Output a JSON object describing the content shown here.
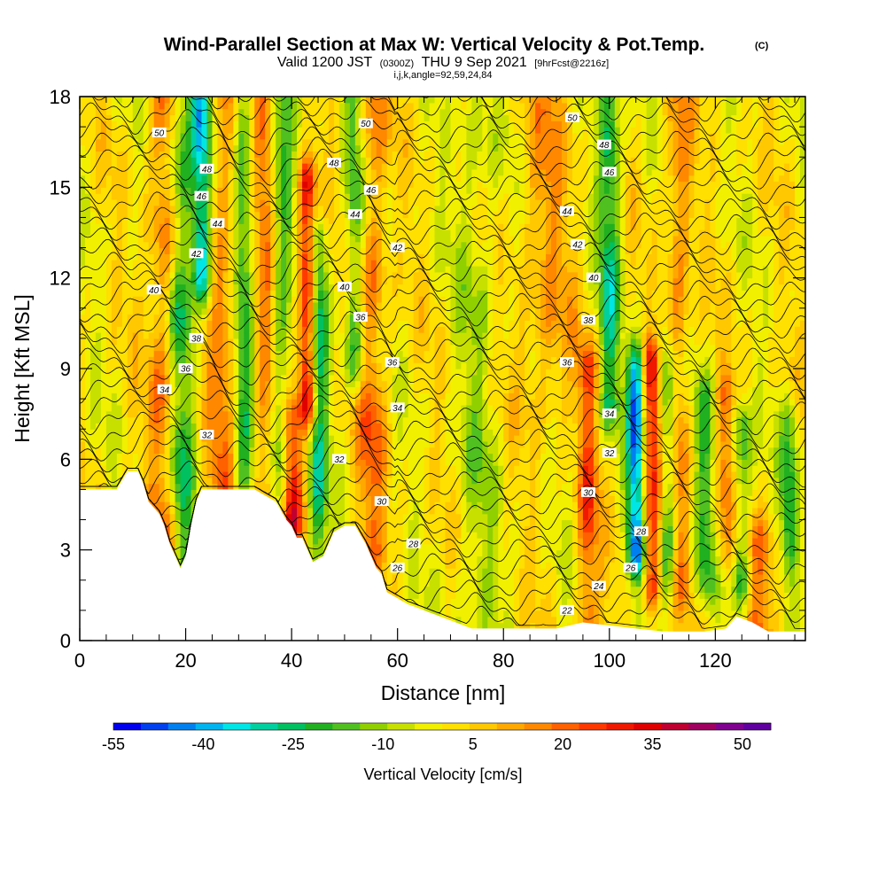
{
  "chart_data": {
    "type": "heatmap",
    "title": "Wind-Parallel Section at Max W: Vertical Velocity & Pot.Temp.",
    "title_mark": "(C)",
    "subtitle_parts": {
      "valid": "Valid 1200 JST",
      "utc": "(0300Z)",
      "date": "THU 9 Sep 2021",
      "fcst": "[9hrFcst@2216z]"
    },
    "info_line": "i,j,k,angle=92,59,24,84",
    "xlabel": "Distance [nm]",
    "ylabel": "Height [Kft MSL]",
    "xlim": [
      0,
      137
    ],
    "ylim": [
      0,
      18
    ],
    "x_ticks": [
      0,
      20,
      40,
      60,
      80,
      100,
      120
    ],
    "y_ticks": [
      0,
      3,
      6,
      9,
      12,
      15,
      18
    ],
    "x_tick_labels": [
      "0",
      "20",
      "40",
      "60",
      "80",
      "100",
      "120"
    ],
    "y_tick_labels": [
      "0",
      "3",
      "6",
      "9",
      "12",
      "15",
      "18"
    ],
    "colorbar": {
      "title": "Vertical Velocity [cm/s]",
      "tick_labels": [
        "-55",
        "-40",
        "-25",
        "-10",
        "5",
        "20",
        "35",
        "50"
      ],
      "tick_values": [
        -55,
        -40,
        -25,
        -10,
        5,
        20,
        35,
        50
      ],
      "colors": [
        "#0000f0",
        "#0040f0",
        "#0080f0",
        "#00b4f0",
        "#00e6e6",
        "#00d0a0",
        "#00c060",
        "#20b020",
        "#50c020",
        "#90d000",
        "#c8e000",
        "#f0f000",
        "#ffe000",
        "#ffc800",
        "#ffa800",
        "#ff8800",
        "#ff6000",
        "#ff3800",
        "#f01800",
        "#e00000",
        "#c00030",
        "#a00060",
        "#800090",
        "#6000a0"
      ]
    },
    "terrain": [
      [
        0,
        5.0
      ],
      [
        7,
        5.0
      ],
      [
        9,
        5.6
      ],
      [
        11,
        5.6
      ],
      [
        12,
        5.2
      ],
      [
        13,
        4.6
      ],
      [
        14,
        4.4
      ],
      [
        15,
        4.2
      ],
      [
        16,
        3.8
      ],
      [
        17,
        3.2
      ],
      [
        18,
        2.8
      ],
      [
        19,
        2.4
      ],
      [
        20,
        2.8
      ],
      [
        21,
        3.8
      ],
      [
        22,
        4.6
      ],
      [
        23,
        5.0
      ],
      [
        28,
        5.0
      ],
      [
        33,
        5.0
      ],
      [
        35,
        4.8
      ],
      [
        37,
        4.6
      ],
      [
        39,
        4.0
      ],
      [
        40,
        3.8
      ],
      [
        41,
        3.4
      ],
      [
        42,
        3.4
      ],
      [
        43,
        3.0
      ],
      [
        44,
        2.6
      ],
      [
        46,
        2.8
      ],
      [
        48,
        3.6
      ],
      [
        50,
        3.8
      ],
      [
        52,
        3.8
      ],
      [
        54,
        3.2
      ],
      [
        55,
        2.8
      ],
      [
        56,
        2.4
      ],
      [
        57,
        2.2
      ],
      [
        58,
        1.6
      ],
      [
        60,
        1.4
      ],
      [
        62,
        1.2
      ],
      [
        65,
        1.0
      ],
      [
        68,
        0.8
      ],
      [
        71,
        0.6
      ],
      [
        74,
        0.4
      ],
      [
        80,
        0.4
      ],
      [
        90,
        0.4
      ],
      [
        95,
        0.6
      ],
      [
        100,
        0.5
      ],
      [
        110,
        0.3
      ],
      [
        118,
        0.3
      ],
      [
        122,
        0.4
      ],
      [
        124,
        0.8
      ],
      [
        127,
        0.6
      ],
      [
        130,
        0.3
      ],
      [
        137,
        0.3
      ]
    ],
    "updraft_columns": [
      {
        "x": 16,
        "w": 3.0,
        "amp": 22,
        "zmin": 3,
        "zmax": 18
      },
      {
        "x": 19,
        "w": 2.5,
        "amp": -28,
        "zmin": 3,
        "zmax": 18
      },
      {
        "x": 23,
        "w": 1.8,
        "amp": -45,
        "zmin": 12,
        "zmax": 18
      },
      {
        "x": 27,
        "w": 3.0,
        "amp": 18,
        "zmin": 5,
        "zmax": 18
      },
      {
        "x": 31,
        "w": 2.0,
        "amp": -25,
        "zmin": 5,
        "zmax": 18
      },
      {
        "x": 35,
        "w": 2.5,
        "amp": 20,
        "zmin": 5,
        "zmax": 18
      },
      {
        "x": 38,
        "w": 2.0,
        "amp": -25,
        "zmin": 5,
        "zmax": 18
      },
      {
        "x": 40,
        "w": 1.8,
        "amp": 40,
        "zmin": 4,
        "zmax": 7
      },
      {
        "x": 43,
        "w": 1.6,
        "amp": 45,
        "zmin": 8,
        "zmax": 15
      },
      {
        "x": 45,
        "w": 1.8,
        "amp": -30,
        "zmin": 3,
        "zmax": 13
      },
      {
        "x": 52,
        "w": 2.0,
        "amp": -25,
        "zmin": 9,
        "zmax": 18
      },
      {
        "x": 55,
        "w": 3.0,
        "amp": 20,
        "zmin": 3,
        "zmax": 18
      },
      {
        "x": 75,
        "w": 4.0,
        "amp": -10,
        "zmin": 0,
        "zmax": 18
      },
      {
        "x": 88,
        "w": 5.0,
        "amp": 14,
        "zmin": 8,
        "zmax": 18
      },
      {
        "x": 96,
        "w": 2.0,
        "amp": 25,
        "zmin": 0,
        "zmax": 9
      },
      {
        "x": 100,
        "w": 2.0,
        "amp": -30,
        "zmin": 8,
        "zmax": 18
      },
      {
        "x": 105,
        "w": 1.6,
        "amp": -55,
        "zmin": 3,
        "zmax": 9
      },
      {
        "x": 108,
        "w": 1.8,
        "amp": 35,
        "zmin": 2,
        "zmax": 9
      },
      {
        "x": 111,
        "w": 1.6,
        "amp": -30,
        "zmin": 2,
        "zmax": 9
      },
      {
        "x": 113,
        "w": 2.5,
        "amp": 18,
        "zmin": 2,
        "zmax": 18
      },
      {
        "x": 118,
        "w": 2.0,
        "amp": -20,
        "zmin": 2,
        "zmax": 8
      },
      {
        "x": 122,
        "w": 2.0,
        "amp": 20,
        "zmin": 3,
        "zmax": 8
      },
      {
        "x": 125,
        "w": 1.8,
        "amp": -25,
        "zmin": 2,
        "zmax": 7
      },
      {
        "x": 128,
        "w": 3.0,
        "amp": 20,
        "zmin": 0,
        "zmax": 3
      },
      {
        "x": 134,
        "w": 1.5,
        "amp": -25,
        "zmin": 3,
        "zmax": 7
      }
    ],
    "theta_contours": [
      {
        "label": "22",
        "z": 1.0,
        "label_x": 92
      },
      {
        "label": "24",
        "z": 1.8,
        "label_x": 98
      },
      {
        "label": "26",
        "z": 2.4,
        "label_x": 60
      },
      {
        "label": "26",
        "z": 2.4,
        "label_x": 104
      },
      {
        "label": "28",
        "z": 3.2,
        "label_x": 63
      },
      {
        "label": "28",
        "z": 3.6,
        "label_x": 106
      },
      {
        "label": "30",
        "z": 4.6,
        "label_x": 57
      },
      {
        "label": "30",
        "z": 4.9,
        "label_x": 96
      },
      {
        "label": "32",
        "z": 6.0,
        "label_x": 49
      },
      {
        "label": "32",
        "z": 6.2,
        "label_x": 100
      },
      {
        "label": "32",
        "z": 6.8,
        "label_x": 24
      },
      {
        "label": "34",
        "z": 7.7,
        "label_x": 60
      },
      {
        "label": "34",
        "z": 7.5,
        "label_x": 100
      },
      {
        "label": "34",
        "z": 8.3,
        "label_x": 16
      },
      {
        "label": "36",
        "z": 9.2,
        "label_x": 59
      },
      {
        "label": "36",
        "z": 9.2,
        "label_x": 92
      },
      {
        "label": "36",
        "z": 9.0,
        "label_x": 20
      },
      {
        "label": "36",
        "z": 10.7,
        "label_x": 53
      },
      {
        "label": "38",
        "z": 10.0,
        "label_x": 22
      },
      {
        "label": "38",
        "z": 10.6,
        "label_x": 96
      },
      {
        "label": "40",
        "z": 11.6,
        "label_x": 14
      },
      {
        "label": "40",
        "z": 11.7,
        "label_x": 50
      },
      {
        "label": "40",
        "z": 12.0,
        "label_x": 97
      },
      {
        "label": "42",
        "z": 12.8,
        "label_x": 22
      },
      {
        "label": "42",
        "z": 13.0,
        "label_x": 60
      },
      {
        "label": "42",
        "z": 13.1,
        "label_x": 94
      },
      {
        "label": "44",
        "z": 13.8,
        "label_x": 26
      },
      {
        "label": "44",
        "z": 14.1,
        "label_x": 52
      },
      {
        "label": "44",
        "z": 14.2,
        "label_x": 92
      },
      {
        "label": "46",
        "z": 14.7,
        "label_x": 23
      },
      {
        "label": "46",
        "z": 14.9,
        "label_x": 55
      },
      {
        "label": "46",
        "z": 15.5,
        "label_x": 100
      },
      {
        "label": "48",
        "z": 15.6,
        "label_x": 24
      },
      {
        "label": "48",
        "z": 15.8,
        "label_x": 48
      },
      {
        "label": "48",
        "z": 16.4,
        "label_x": 99
      },
      {
        "label": "50",
        "z": 16.8,
        "label_x": 15
      },
      {
        "label": "50",
        "z": 17.1,
        "label_x": 54
      },
      {
        "label": "50",
        "z": 17.3,
        "label_x": 93
      }
    ]
  }
}
